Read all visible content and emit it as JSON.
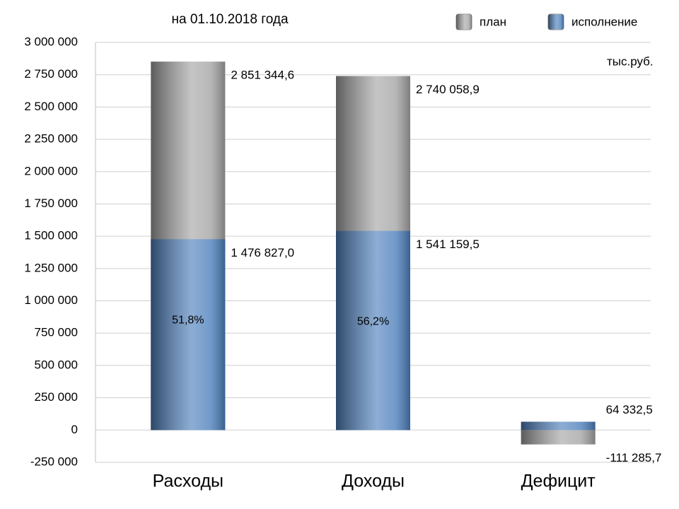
{
  "chart_data": {
    "type": "bar",
    "subtitle": "на 01.10.2018 года",
    "unit_label": "тыс.руб.",
    "categories": [
      "Расходы",
      "Доходы",
      "Дефицит"
    ],
    "overlap": true,
    "series": [
      {
        "name": "план",
        "color": "#a6a6a6",
        "values": [
          2851344.6,
          2740058.9,
          -111285.7
        ],
        "value_labels": [
          "2 851 344,6",
          "2 740 058,9",
          "-111 285,7"
        ]
      },
      {
        "name": "исполнение",
        "color": "#4f81bd",
        "values": [
          1476827.0,
          1541159.5,
          64332.5
        ],
        "value_labels": [
          "1 476 827,0",
          "1 541 159,5",
          "64 332,5"
        ],
        "percent_labels": [
          "51,8%",
          "56,2%",
          null
        ]
      }
    ],
    "ylim": [
      -250000,
      3000000
    ],
    "yticks": [
      {
        "value": -250000,
        "label": "-250 000"
      },
      0,
      {
        "value": 250000,
        "label": "250 000"
      },
      {
        "value": 500000,
        "label": "500 000"
      },
      {
        "value": 750000,
        "label": "750 000"
      },
      {
        "value": 1000000,
        "label": "1 000 000"
      },
      {
        "value": 1250000,
        "label": "1 250 000"
      },
      {
        "value": 1500000,
        "label": "1 500 000"
      },
      {
        "value": 1750000,
        "label": "1 750 000"
      },
      {
        "value": 2000000,
        "label": "2 000 000"
      },
      {
        "value": 2250000,
        "label": "2 250 000"
      },
      {
        "value": 2500000,
        "label": "2 500 000"
      },
      {
        "value": 2750000,
        "label": "2 750 000"
      },
      {
        "value": 3000000,
        "label": "3 000 000"
      }
    ],
    "grid": true
  }
}
